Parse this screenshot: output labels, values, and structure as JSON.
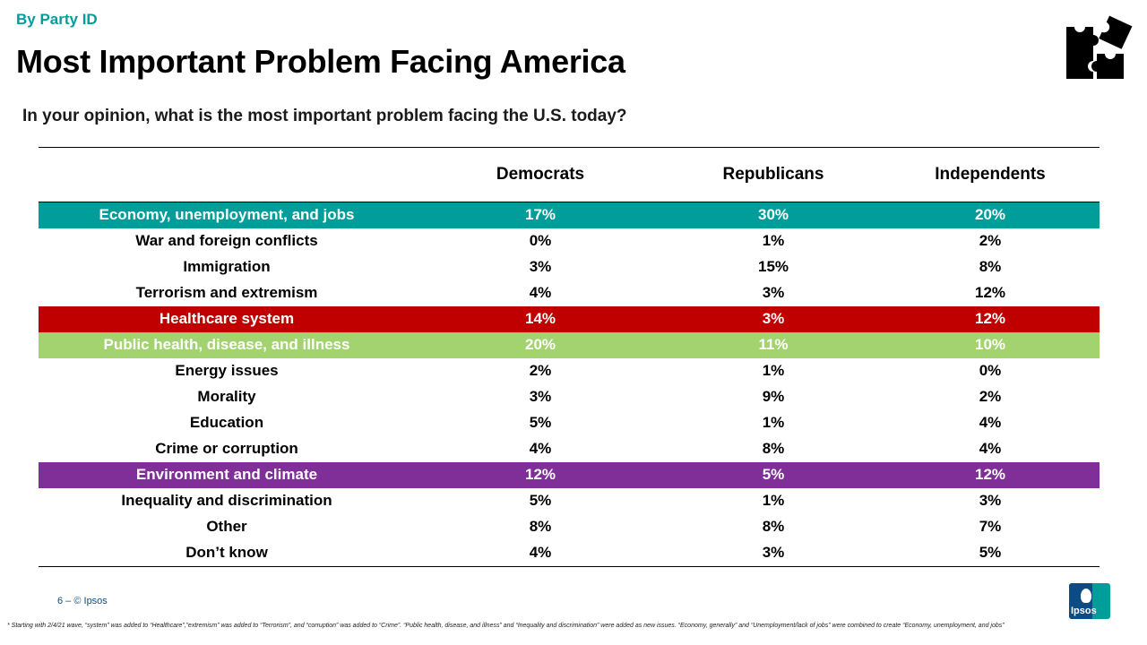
{
  "header": {
    "kicker": "By Party ID",
    "title": "Most Important Problem Facing America",
    "subtitle": "In your opinion, what is the most important problem facing the U.S. today?"
  },
  "colors": {
    "teal": "#009d9a",
    "red": "#c00000",
    "light_green": "#a3d36f",
    "purple": "#7f2f97"
  },
  "table": {
    "columns": [
      "Democrats",
      "Republicans",
      "Independents"
    ],
    "rows": [
      {
        "label": "Economy, unemployment, and jobs",
        "values": [
          "17%",
          "30%",
          "20%"
        ],
        "highlight": "#009d9a"
      },
      {
        "label": "War and foreign conflicts",
        "values": [
          "0%",
          "1%",
          "2%"
        ]
      },
      {
        "label": "Immigration",
        "values": [
          "3%",
          "15%",
          "8%"
        ]
      },
      {
        "label": "Terrorism and extremism",
        "values": [
          "4%",
          "3%",
          "12%"
        ]
      },
      {
        "label": "Healthcare system",
        "values": [
          "14%",
          "3%",
          "12%"
        ],
        "highlight": "#c00000"
      },
      {
        "label": "Public health, disease, and illness",
        "values": [
          "20%",
          "11%",
          "10%"
        ],
        "highlight": "#a3d36f"
      },
      {
        "label": "Energy issues",
        "values": [
          "2%",
          "1%",
          "0%"
        ]
      },
      {
        "label": "Morality",
        "values": [
          "3%",
          "9%",
          "2%"
        ]
      },
      {
        "label": "Education",
        "values": [
          "5%",
          "1%",
          "4%"
        ]
      },
      {
        "label": "Crime or corruption",
        "values": [
          "4%",
          "8%",
          "4%"
        ]
      },
      {
        "label": "Environment and climate",
        "values": [
          "12%",
          "5%",
          "12%"
        ],
        "highlight": "#7f2f97"
      },
      {
        "label": "Inequality and discrimination",
        "values": [
          "5%",
          "1%",
          "3%"
        ]
      },
      {
        "label": "Other",
        "values": [
          "8%",
          "8%",
          "7%"
        ]
      },
      {
        "label": "Don’t know",
        "values": [
          "4%",
          "3%",
          "5%"
        ]
      }
    ]
  },
  "footer": {
    "page": "6 –   © Ipsos",
    "note": "* Starting with 2/4/21 wave, “system” was added to “Healthcare”,”extremism” was added to “Terrorism”, and “corruption” was added to “Crime”. “Public health, disease, and illness” and “Inequality and discrimination” were added as new issues. “Economy, generally” and “Unemployment/lack of jobs” were combined to create “Economy, unemployment, and jobs”",
    "logo_text": "Ipsos"
  },
  "icons": {
    "puzzle": "puzzle-pieces-icon"
  }
}
